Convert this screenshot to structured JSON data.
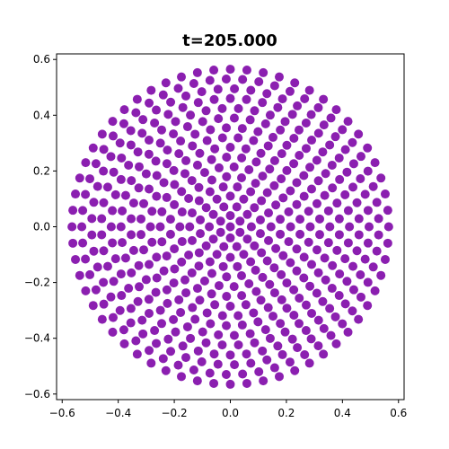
{
  "chart_data": {
    "type": "scatter",
    "title": "t=205.000",
    "xlabel": "",
    "ylabel": "",
    "xlim": [
      -0.62,
      0.62
    ],
    "ylim": [
      -0.62,
      0.62
    ],
    "x_ticks": [
      -0.6,
      -0.4,
      -0.2,
      0.0,
      0.2,
      0.4,
      0.6
    ],
    "y_ticks": [
      -0.6,
      -0.4,
      -0.2,
      0.0,
      0.2,
      0.4,
      0.6
    ],
    "x_tick_labels": [
      "−0.6",
      "−0.4",
      "−0.2",
      "0.0",
      "0.2",
      "0.4",
      "0.6"
    ],
    "y_tick_labels": [
      "−0.6",
      "−0.4",
      "−0.2",
      "0.0",
      "0.2",
      "0.4",
      "0.6"
    ],
    "grid": false,
    "marker_color": "#8b1fb0",
    "disc": {
      "center": [
        0.0,
        0.0
      ],
      "radius": 0.565,
      "rings": [
        {
          "r": 0.565,
          "n": 60
        },
        {
          "r": 0.53,
          "n": 57
        },
        {
          "r": 0.495,
          "n": 53
        },
        {
          "r": 0.46,
          "n": 50
        },
        {
          "r": 0.425,
          "n": 46
        },
        {
          "r": 0.39,
          "n": 43
        },
        {
          "r": 0.355,
          "n": 39
        },
        {
          "r": 0.32,
          "n": 36
        },
        {
          "r": 0.285,
          "n": 32
        },
        {
          "r": 0.25,
          "n": 29
        },
        {
          "r": 0.215,
          "n": 25
        },
        {
          "r": 0.18,
          "n": 21
        },
        {
          "r": 0.145,
          "n": 18
        },
        {
          "r": 0.11,
          "n": 14
        },
        {
          "r": 0.075,
          "n": 10
        },
        {
          "r": 0.04,
          "n": 6
        },
        {
          "r": 0.0,
          "n": 1
        }
      ]
    }
  }
}
